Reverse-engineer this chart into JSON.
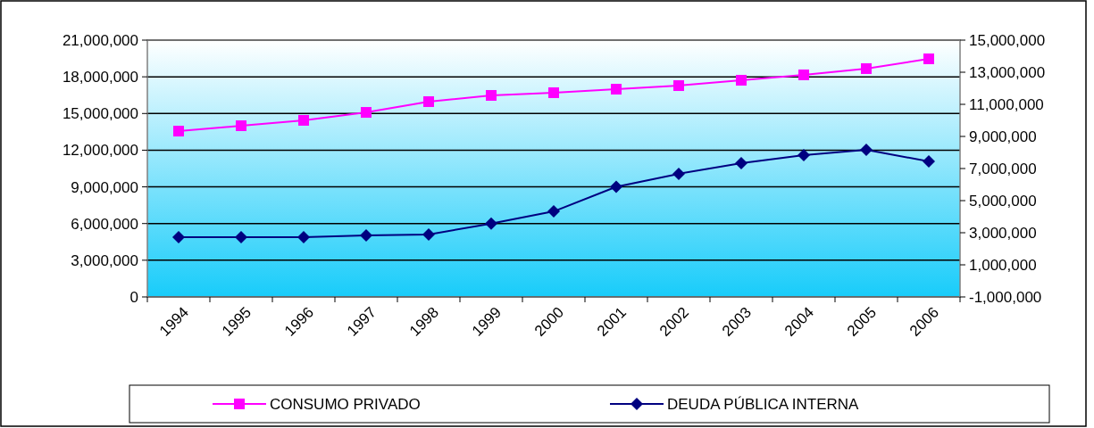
{
  "chart_data": {
    "type": "line",
    "categories": [
      "1994",
      "1995",
      "1996",
      "1997",
      "1998",
      "1999",
      "2000",
      "2001",
      "2002",
      "2003",
      "2004",
      "2005",
      "2006"
    ],
    "series": [
      {
        "name": "CONSUMO PRIVADO",
        "color": "#ff00ff",
        "marker": "square",
        "values": [
          13560000,
          14000000,
          14440000,
          15090000,
          15970000,
          16480000,
          16700000,
          16990000,
          17280000,
          17720000,
          18160000,
          18670000,
          19470000
        ]
      },
      {
        "name": "DEUDA PÚBLICA INTERNA",
        "color": "#000080",
        "marker": "diamond",
        "axis": "y2",
        "values": [
          2720000,
          2720000,
          2720000,
          2830000,
          2890000,
          3570000,
          4330000,
          5860000,
          6670000,
          7330000,
          7830000,
          8170000,
          7440000
        ]
      }
    ],
    "ylim": [
      0,
      21000000
    ],
    "yticks": [
      {
        "value": 0,
        "label": "0"
      },
      {
        "value": 3000000,
        "label": "3,000,000"
      },
      {
        "value": 6000000,
        "label": "6,000,000"
      },
      {
        "value": 9000000,
        "label": "9,000,000"
      },
      {
        "value": 12000000,
        "label": "12,000,000"
      },
      {
        "value": 15000000,
        "label": "15,000,000"
      },
      {
        "value": 18000000,
        "label": "18,000,000"
      },
      {
        "value": 21000000,
        "label": "21,000,000"
      }
    ],
    "y2lim": [
      -1000000,
      15000000
    ],
    "y2ticks": [
      {
        "value": -1000000,
        "label": "-1,000,000"
      },
      {
        "value": 1000000,
        "label": "1,000,000"
      },
      {
        "value": 3000000,
        "label": "3,000,000"
      },
      {
        "value": 5000000,
        "label": "5,000,000"
      },
      {
        "value": 7000000,
        "label": "7,000,000"
      },
      {
        "value": 9000000,
        "label": "9,000,000"
      },
      {
        "value": 11000000,
        "label": "11,000,000"
      },
      {
        "value": 13000000,
        "label": "13,000,000"
      },
      {
        "value": 15000000,
        "label": "15,000,000"
      }
    ],
    "grid": "y",
    "legend": "bottom"
  }
}
